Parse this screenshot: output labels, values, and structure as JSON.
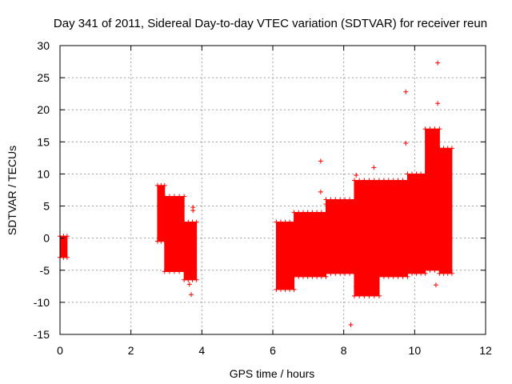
{
  "chart_data": {
    "type": "scatter",
    "title": "Day 341 of 2011, Sidereal Day-to-day VTEC variation (SDTVAR) for receiver reun",
    "xlabel": "GPS time / hours",
    "ylabel": "SDTVAR / TECUs",
    "xlim": [
      0,
      12
    ],
    "ylim": [
      -15,
      30
    ],
    "xticks": [
      0,
      2,
      4,
      6,
      8,
      10,
      12
    ],
    "yticks": [
      -15,
      -10,
      -5,
      0,
      5,
      10,
      15,
      20,
      25,
      30
    ],
    "grid": true,
    "marker": "+",
    "color": "#ff0000",
    "series": [
      {
        "name": "SDTVAR",
        "bands": [
          {
            "x": [
              0.0,
              0.2
            ],
            "y_low": -3.0,
            "y_high": 0.3
          },
          {
            "x": [
              2.75,
              2.95
            ],
            "y_low": -0.5,
            "y_high": 8.2
          },
          {
            "x": [
              2.95,
              3.5
            ],
            "y_low": -5.2,
            "y_high": 6.5
          },
          {
            "x": [
              3.5,
              3.85
            ],
            "y_low": -6.5,
            "y_high": 2.5
          },
          {
            "x": [
              6.1,
              6.6
            ],
            "y_low": -8.0,
            "y_high": 2.5
          },
          {
            "x": [
              6.6,
              7.5
            ],
            "y_low": -6.0,
            "y_high": 4.0
          },
          {
            "x": [
              7.5,
              8.3
            ],
            "y_low": -5.5,
            "y_high": 6.0
          },
          {
            "x": [
              8.3,
              9.0
            ],
            "y_low": -9.0,
            "y_high": 9.0
          },
          {
            "x": [
              9.0,
              9.8
            ],
            "y_low": -6.0,
            "y_high": 9.0
          },
          {
            "x": [
              9.8,
              10.3
            ],
            "y_low": -5.5,
            "y_high": 10.0
          },
          {
            "x": [
              10.3,
              10.7
            ],
            "y_low": -5.0,
            "y_high": 17.0
          },
          {
            "x": [
              10.7,
              11.05
            ],
            "y_low": -5.5,
            "y_high": 14.0
          }
        ],
        "outliers": [
          {
            "x": 3.7,
            "y": -8.8
          },
          {
            "x": 3.75,
            "y": 4.8
          },
          {
            "x": 3.75,
            "y": 4.3
          },
          {
            "x": 3.65,
            "y": -7.2
          },
          {
            "x": 7.35,
            "y": 12.0
          },
          {
            "x": 7.35,
            "y": 7.2
          },
          {
            "x": 7.5,
            "y": 5.3
          },
          {
            "x": 8.2,
            "y": -13.5
          },
          {
            "x": 8.35,
            "y": 9.8
          },
          {
            "x": 8.85,
            "y": 11.0
          },
          {
            "x": 8.35,
            "y": -7.5
          },
          {
            "x": 9.75,
            "y": 22.8
          },
          {
            "x": 9.75,
            "y": 14.8
          },
          {
            "x": 10.65,
            "y": 27.3
          },
          {
            "x": 10.65,
            "y": 21.0
          },
          {
            "x": 10.6,
            "y": -7.3
          }
        ]
      }
    ]
  }
}
